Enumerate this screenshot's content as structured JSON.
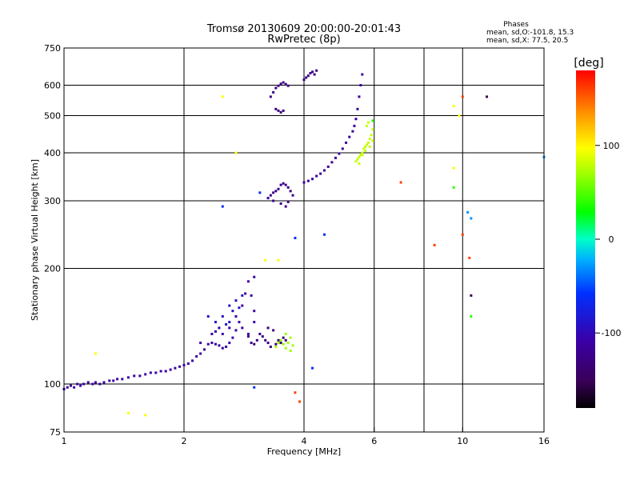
{
  "chart_data": {
    "type": "scatter",
    "title": "Tromsø 20130609 20:00:00-20:01:43",
    "subtitle": "RwPretec (8p)",
    "xlabel": "Frequency [MHz]",
    "ylabel": "Stationary phase Virtual Height [km]",
    "x_scale": "log",
    "y_scale": "log",
    "xlim": [
      1,
      16
    ],
    "ylim": [
      75,
      750
    ],
    "x_ticks": [
      1,
      2,
      4,
      6,
      10,
      16
    ],
    "x_tick_labels": [
      "1",
      "2",
      "4",
      "6",
      "10",
      "16"
    ],
    "x_minor_gridlines": [
      8
    ],
    "y_ticks": [
      75,
      100,
      200,
      300,
      400,
      500,
      600,
      750
    ],
    "y_tick_labels": [
      "75",
      "100",
      "200",
      "300",
      "400",
      "500",
      "600",
      "750"
    ],
    "grid": true,
    "stats": {
      "heading": "Phases",
      "line_o": "mean, sd,O:-101.8, 15.3",
      "line_x": "mean, sd,X:  77.5, 20.5"
    },
    "colorbar": {
      "label": "[deg]",
      "min": -180,
      "max": 180,
      "ticks": [
        100,
        0,
        -100
      ],
      "tick_labels": [
        "100",
        "0",
        "-100"
      ]
    },
    "series": [
      {
        "color_value": -110,
        "points": [
          [
            1.0,
            97
          ],
          [
            1.02,
            98
          ],
          [
            1.04,
            99
          ],
          [
            1.06,
            98
          ],
          [
            1.08,
            100
          ],
          [
            1.1,
            99
          ],
          [
            1.12,
            100
          ],
          [
            1.15,
            101
          ],
          [
            1.18,
            100
          ],
          [
            1.2,
            101
          ],
          [
            1.23,
            100
          ],
          [
            1.26,
            101
          ],
          [
            1.3,
            102
          ],
          [
            1.33,
            102
          ],
          [
            1.36,
            103
          ],
          [
            1.4,
            103
          ],
          [
            1.45,
            104
          ],
          [
            1.5,
            105
          ],
          [
            1.55,
            105
          ],
          [
            1.6,
            106
          ],
          [
            1.65,
            107
          ],
          [
            1.7,
            107
          ],
          [
            1.75,
            108
          ],
          [
            1.8,
            108
          ],
          [
            1.85,
            109
          ],
          [
            1.9,
            110
          ],
          [
            1.95,
            111
          ],
          [
            2.0,
            112
          ],
          [
            2.05,
            113
          ],
          [
            2.1,
            115
          ],
          [
            2.15,
            118
          ],
          [
            2.2,
            120
          ],
          [
            2.25,
            123
          ],
          [
            2.3,
            127
          ],
          [
            2.35,
            128
          ],
          [
            2.4,
            127
          ],
          [
            2.45,
            126
          ],
          [
            2.5,
            124
          ],
          [
            2.55,
            125
          ],
          [
            2.6,
            128
          ],
          [
            2.65,
            132
          ],
          [
            2.7,
            138
          ],
          [
            2.75,
            145
          ],
          [
            2.8,
            160
          ],
          [
            2.85,
            172
          ],
          [
            2.9,
            185
          ],
          [
            2.95,
            170
          ],
          [
            3.0,
            155
          ],
          [
            2.6,
            140
          ],
          [
            2.5,
            135
          ],
          [
            2.4,
            137
          ],
          [
            2.7,
            150
          ],
          [
            2.8,
            140
          ],
          [
            2.9,
            135
          ],
          [
            3.0,
            145
          ],
          [
            2.2,
            128
          ],
          [
            2.35,
            135
          ],
          [
            2.45,
            140
          ],
          [
            3.0,
            190
          ]
        ]
      },
      {
        "color_value": -130,
        "points": [
          [
            2.9,
            133
          ],
          [
            2.95,
            128
          ],
          [
            3.0,
            127
          ],
          [
            3.05,
            130
          ],
          [
            3.1,
            135
          ],
          [
            3.15,
            133
          ],
          [
            3.2,
            130
          ],
          [
            3.25,
            128
          ],
          [
            3.3,
            125
          ],
          [
            3.4,
            127
          ],
          [
            3.45,
            130
          ],
          [
            3.5,
            128
          ],
          [
            3.55,
            132
          ],
          [
            3.6,
            130
          ],
          [
            3.25,
            140
          ],
          [
            3.35,
            138
          ]
        ]
      },
      {
        "color_value": -90,
        "points": [
          [
            2.5,
            150
          ],
          [
            2.55,
            143
          ],
          [
            2.6,
            160
          ],
          [
            2.65,
            155
          ],
          [
            2.7,
            165
          ],
          [
            2.75,
            158
          ],
          [
            2.8,
            170
          ],
          [
            2.3,
            150
          ],
          [
            2.4,
            145
          ],
          [
            2.6,
            145
          ]
        ]
      },
      {
        "color_value": -125,
        "points": [
          [
            3.25,
            305
          ],
          [
            3.3,
            310
          ],
          [
            3.35,
            315
          ],
          [
            3.4,
            318
          ],
          [
            3.45,
            322
          ],
          [
            3.5,
            330
          ],
          [
            3.55,
            333
          ],
          [
            3.6,
            330
          ],
          [
            3.65,
            325
          ],
          [
            3.7,
            318
          ],
          [
            3.75,
            310
          ],
          [
            3.35,
            300
          ],
          [
            3.5,
            295
          ],
          [
            3.6,
            290
          ],
          [
            3.65,
            298
          ]
        ]
      },
      {
        "color_value": -115,
        "points": [
          [
            4.0,
            335
          ],
          [
            4.1,
            338
          ],
          [
            4.2,
            342
          ],
          [
            4.3,
            348
          ],
          [
            4.4,
            353
          ],
          [
            4.5,
            360
          ],
          [
            4.6,
            368
          ],
          [
            4.7,
            378
          ],
          [
            4.8,
            388
          ],
          [
            4.9,
            398
          ],
          [
            5.0,
            410
          ],
          [
            5.1,
            425
          ],
          [
            5.2,
            440
          ],
          [
            5.3,
            455
          ],
          [
            5.35,
            470
          ],
          [
            5.4,
            490
          ],
          [
            5.45,
            520
          ],
          [
            5.5,
            560
          ],
          [
            5.55,
            600
          ],
          [
            5.6,
            640
          ]
        ]
      },
      {
        "color_value": -128,
        "points": [
          [
            3.3,
            560
          ],
          [
            3.35,
            575
          ],
          [
            3.4,
            590
          ],
          [
            3.45,
            598
          ],
          [
            3.5,
            605
          ],
          [
            3.55,
            610
          ],
          [
            3.6,
            604
          ],
          [
            3.65,
            598
          ],
          [
            3.4,
            520
          ],
          [
            3.45,
            515
          ],
          [
            3.5,
            510
          ],
          [
            3.55,
            515
          ],
          [
            4.0,
            620
          ],
          [
            4.05,
            628
          ],
          [
            4.1,
            635
          ],
          [
            4.15,
            645
          ],
          [
            4.2,
            650
          ],
          [
            4.25,
            640
          ],
          [
            4.3,
            655
          ]
        ]
      },
      {
        "color_value": 80,
        "points": [
          [
            5.4,
            380
          ],
          [
            5.45,
            385
          ],
          [
            5.5,
            390
          ],
          [
            5.55,
            395
          ],
          [
            5.6,
            400
          ],
          [
            5.65,
            410
          ],
          [
            5.7,
            415
          ],
          [
            5.75,
            420
          ],
          [
            5.8,
            425
          ],
          [
            5.6,
            395
          ],
          [
            5.7,
            405
          ],
          [
            5.5,
            375
          ],
          [
            5.85,
            435
          ],
          [
            5.9,
            445
          ],
          [
            5.95,
            460
          ],
          [
            5.8,
            480
          ],
          [
            5.75,
            470
          ],
          [
            5.85,
            415
          ],
          [
            5.95,
            430
          ]
        ]
      },
      {
        "color_value": 70,
        "points": [
          [
            3.4,
            125
          ],
          [
            3.45,
            128
          ],
          [
            3.5,
            130
          ],
          [
            3.55,
            127
          ],
          [
            3.6,
            124
          ],
          [
            3.65,
            128
          ],
          [
            3.7,
            132
          ],
          [
            3.6,
            135
          ],
          [
            3.7,
            122
          ],
          [
            3.75,
            126
          ]
        ]
      },
      {
        "color_value": 95,
        "points": [
          [
            1.2,
            120
          ],
          [
            1.45,
            84
          ],
          [
            1.6,
            83
          ],
          [
            2.5,
            560
          ],
          [
            2.7,
            400
          ],
          [
            3.2,
            210
          ],
          [
            3.45,
            210
          ],
          [
            9.5,
            530
          ],
          [
            9.5,
            365
          ],
          [
            9.8,
            500
          ]
        ]
      },
      {
        "color_value": 160,
        "points": [
          [
            7.0,
            335
          ],
          [
            10.0,
            560
          ],
          [
            10.0,
            245
          ],
          [
            10.4,
            213
          ],
          [
            8.5,
            230
          ],
          [
            3.8,
            95
          ],
          [
            3.9,
            90
          ]
        ]
      },
      {
        "color_value": 40,
        "points": [
          [
            9.5,
            325
          ],
          [
            10.5,
            150
          ],
          [
            5.95,
            485
          ]
        ]
      },
      {
        "color_value": -30,
        "points": [
          [
            10.5,
            270
          ],
          [
            16,
            390
          ],
          [
            10.3,
            280
          ]
        ]
      },
      {
        "color_value": -60,
        "points": [
          [
            3.0,
            98
          ],
          [
            2.5,
            290
          ],
          [
            3.1,
            315
          ],
          [
            3.8,
            240
          ],
          [
            4.5,
            245
          ],
          [
            4.2,
            110
          ]
        ]
      },
      {
        "color_value": -150,
        "points": [
          [
            10.5,
            170
          ],
          [
            11.5,
            560
          ]
        ]
      }
    ]
  }
}
